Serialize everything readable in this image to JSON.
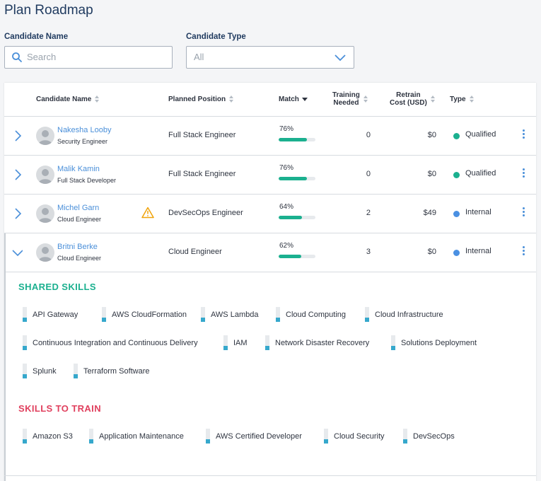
{
  "page": {
    "title": "Plan Roadmap"
  },
  "filters": {
    "candidate_name": {
      "label": "Candidate Name",
      "placeholder": "Search",
      "value": ""
    },
    "candidate_type": {
      "label": "Candidate Type",
      "value": "All"
    }
  },
  "table": {
    "headers": {
      "name": "Candidate Name",
      "position": "Planned Position",
      "match": "Match",
      "training_l1": "Training",
      "training_l2": "Needed",
      "cost_l1": "Retrain",
      "cost_l2": "Cost (USD)",
      "type": "Type"
    },
    "rows": [
      {
        "name": "Nakesha Looby",
        "role": "Security Engineer",
        "position": "Full Stack Engineer",
        "match": "76%",
        "match_value": 0.76,
        "training": "0",
        "cost": "$0",
        "type": "Qualified",
        "warning": false,
        "expanded": false
      },
      {
        "name": "Malik Kamin",
        "role": "Full Stack Developer",
        "position": "Full Stack Engineer",
        "match": "76%",
        "match_value": 0.76,
        "training": "0",
        "cost": "$0",
        "type": "Qualified",
        "warning": false,
        "expanded": false
      },
      {
        "name": "Michel Garn",
        "role": "Cloud Engineer",
        "position": "DevSecOps Engineer",
        "match": "64%",
        "match_value": 0.64,
        "training": "2",
        "cost": "$49",
        "type": "Internal",
        "warning": true,
        "expanded": false
      },
      {
        "name": "Britni Berke",
        "role": "Cloud Engineer",
        "position": "Cloud Engineer",
        "match": "62%",
        "match_value": 0.62,
        "training": "3",
        "cost": "$0",
        "type": "Internal",
        "warning": false,
        "expanded": true
      }
    ]
  },
  "details": {
    "shared_title": "SHARED SKILLS",
    "shared_skills": [
      {
        "label": "API Gateway",
        "level": 0.3
      },
      {
        "label": "AWS CloudFormation",
        "level": 0.3
      },
      {
        "label": "AWS Lambda",
        "level": 0.3
      },
      {
        "label": "Cloud Computing",
        "level": 0.3
      },
      {
        "label": "Cloud Infrastructure",
        "level": 0.3
      },
      {
        "label": "Continuous Integration and Continuous Delivery",
        "level": 0.3
      },
      {
        "label": "IAM",
        "level": 0.3
      },
      {
        "label": "Network Disaster Recovery",
        "level": 0.3
      },
      {
        "label": "Solutions Deployment",
        "level": 0.3
      },
      {
        "label": "Splunk",
        "level": 0.3
      },
      {
        "label": "Terraform Software",
        "level": 0.3
      }
    ],
    "train_title": "SKILLS TO TRAIN",
    "train_skills": [
      {
        "label": "Amazon S3",
        "level": 0.3
      },
      {
        "label": "Application Maintenance",
        "level": 0.3
      },
      {
        "label": "AWS Certified Developer",
        "level": 0.3
      },
      {
        "label": "Cloud Security",
        "level": 0.3
      },
      {
        "label": "DevSecOps",
        "level": 0.3
      }
    ]
  },
  "colors": {
    "qualified": "#1bb08f",
    "internal": "#4a90e2",
    "shared_title": "#1bb08f",
    "train_title": "#e0405e",
    "warning": "#f0a30a",
    "link": "#4a8fd9",
    "skill_level": "#36a8cc"
  }
}
